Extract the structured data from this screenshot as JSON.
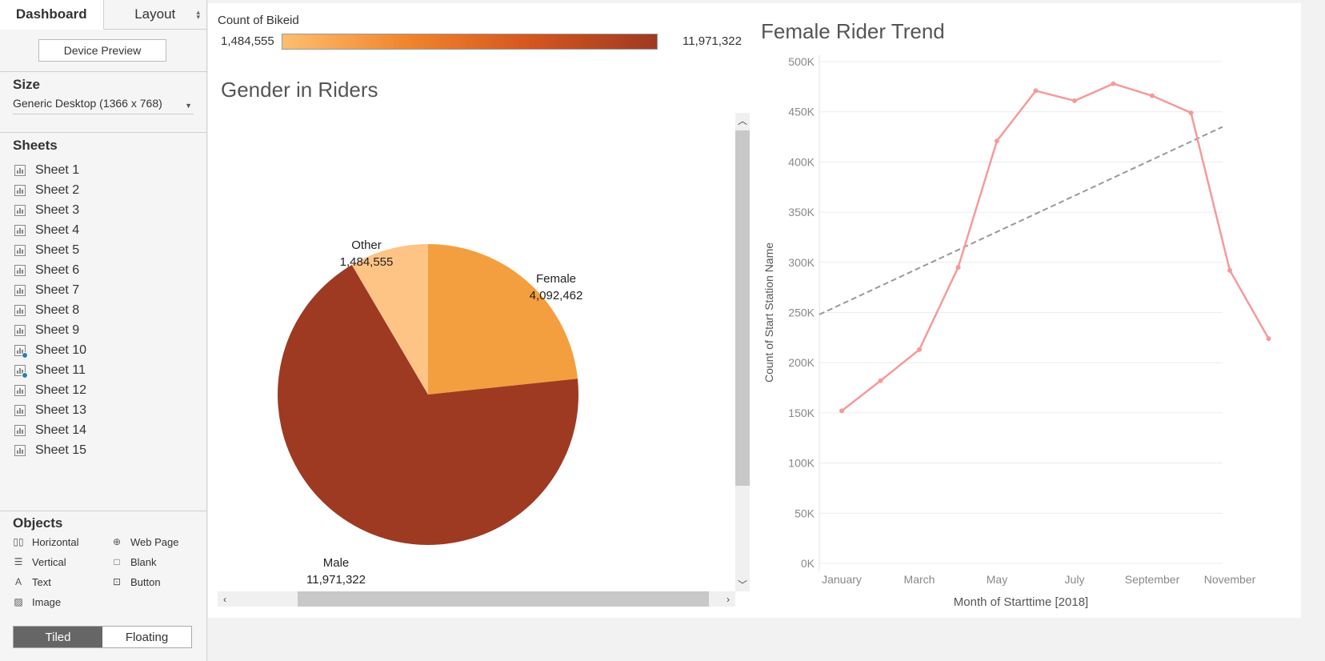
{
  "sidebar": {
    "tabs": [
      {
        "label": "Dashboard",
        "active": true
      },
      {
        "label": "Layout",
        "active": false
      }
    ],
    "device_preview": "Device Preview",
    "size_title": "Size",
    "size_value": "Generic Desktop (1366 x 768)",
    "sheets_title": "Sheets",
    "sheets": [
      {
        "label": "Sheet 1",
        "used": false
      },
      {
        "label": "Sheet 2",
        "used": false
      },
      {
        "label": "Sheet 3",
        "used": false
      },
      {
        "label": "Sheet 4",
        "used": false
      },
      {
        "label": "Sheet 5",
        "used": false
      },
      {
        "label": "Sheet 6",
        "used": false
      },
      {
        "label": "Sheet 7",
        "used": false
      },
      {
        "label": "Sheet 8",
        "used": false
      },
      {
        "label": "Sheet 9",
        "used": false
      },
      {
        "label": "Sheet 10",
        "used": true
      },
      {
        "label": "Sheet 11",
        "used": true
      },
      {
        "label": "Sheet 12",
        "used": false
      },
      {
        "label": "Sheet 13",
        "used": false
      },
      {
        "label": "Sheet 14",
        "used": false
      },
      {
        "label": "Sheet 15",
        "used": false
      }
    ],
    "objects_title": "Objects",
    "objects": [
      {
        "label": "Horizontal",
        "icon": "horizontal-container-icon"
      },
      {
        "label": "Web Page",
        "icon": "globe-icon"
      },
      {
        "label": "Vertical",
        "icon": "vertical-container-icon"
      },
      {
        "label": "Blank",
        "icon": "blank-icon"
      },
      {
        "label": "Text",
        "icon": "text-icon"
      },
      {
        "label": "Button",
        "icon": "button-icon"
      },
      {
        "label": "Image",
        "icon": "image-icon"
      }
    ],
    "tiled_label": "Tiled",
    "floating_label": "Floating"
  },
  "legend": {
    "title": "Count of Bikeid",
    "min_label": "1,484,555",
    "max_label": "11,971,322",
    "colors": [
      "#fdbe6f",
      "#f0852d",
      "#d4561f",
      "#9e3a22"
    ]
  },
  "pie": {
    "title": "Gender in Riders",
    "slices": [
      {
        "name": "Female",
        "value_label": "4,092,462",
        "value": 4092462,
        "color": "#f49f3f"
      },
      {
        "name": "Male",
        "value_label": "11,971,322",
        "value": 11971322,
        "color": "#9e3a22"
      },
      {
        "name": "Other",
        "value_label": "1,484,555",
        "value": 1484555,
        "color": "#fdc486"
      }
    ]
  },
  "chart_data": {
    "type": "line",
    "title": "Female Rider Trend",
    "xlabel": "Month of Starttime [2018]",
    "ylabel": "Count of Start Station Name",
    "x_tick_labels": [
      "January",
      "March",
      "May",
      "July",
      "September",
      "November"
    ],
    "x_tick_index": [
      1,
      3,
      5,
      7,
      9,
      11
    ],
    "y_ticks": [
      0,
      50000,
      100000,
      150000,
      200000,
      250000,
      300000,
      350000,
      400000,
      450000,
      500000
    ],
    "y_tick_labels": [
      "0K",
      "50K",
      "100K",
      "150K",
      "200K",
      "250K",
      "300K",
      "350K",
      "400K",
      "450K",
      "500K"
    ],
    "ylim": [
      0,
      500000
    ],
    "grid": true,
    "series": [
      {
        "x": [
          1,
          2,
          3,
          4,
          5,
          6,
          7,
          8,
          9,
          10,
          11,
          12
        ],
        "values": [
          152000,
          182000,
          213000,
          295000,
          421000,
          471000,
          461000,
          478000,
          466000,
          449000,
          292000,
          224000
        ],
        "color": "#f59a9a"
      }
    ],
    "trend_line": {
      "style": "dashed",
      "color": "#999999",
      "values_at_ends": [
        248000,
        435000
      ]
    }
  }
}
